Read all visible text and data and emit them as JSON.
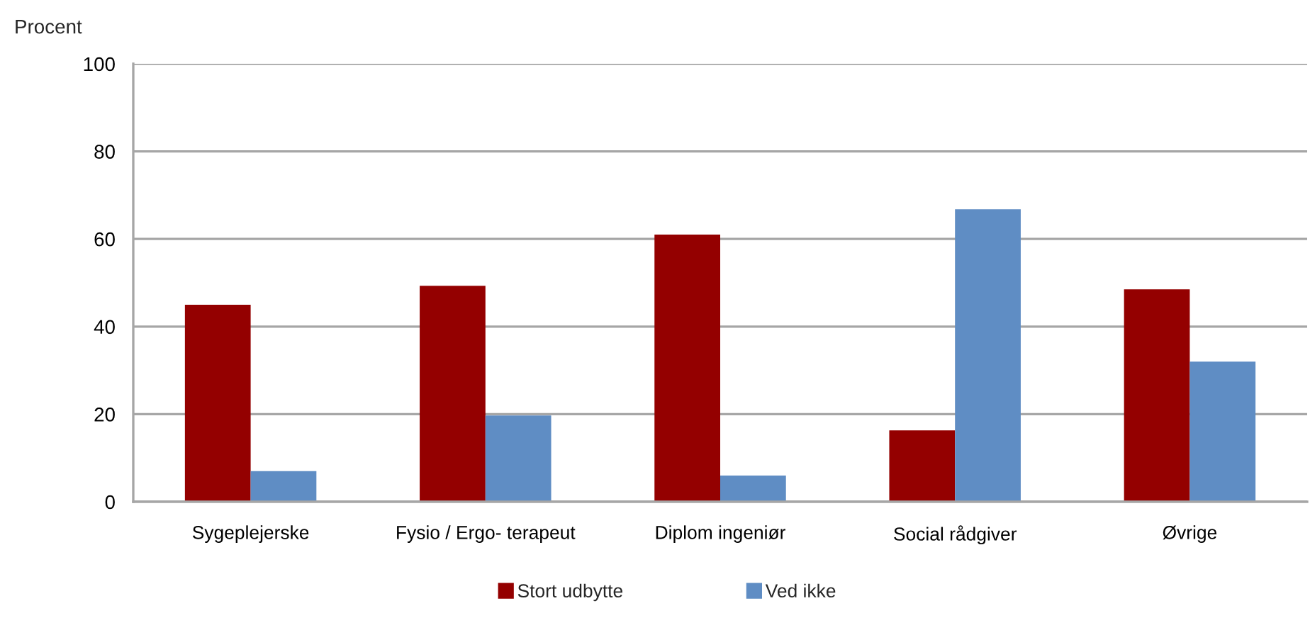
{
  "chart_data": {
    "type": "bar",
    "ylabel": "Procent",
    "categories": [
      "Sygeplejerske",
      "Fysio / Ergo- terapeut",
      "Diplom ingeniør",
      "Social rådgiver",
      "Øvrige"
    ],
    "series": [
      {
        "name": "Stort udbytte",
        "color": "#940000",
        "values": [
          45,
          49.3,
          61,
          16.3,
          48.5
        ]
      },
      {
        "name": "Ved ikke",
        "color": "#5f8dc4",
        "values": [
          7,
          19.7,
          6,
          66.8,
          32
        ]
      }
    ],
    "ylim": [
      0,
      100
    ],
    "yticks": [
      0,
      20,
      40,
      60,
      80,
      100
    ],
    "grid": "y",
    "legend": "bottom"
  }
}
